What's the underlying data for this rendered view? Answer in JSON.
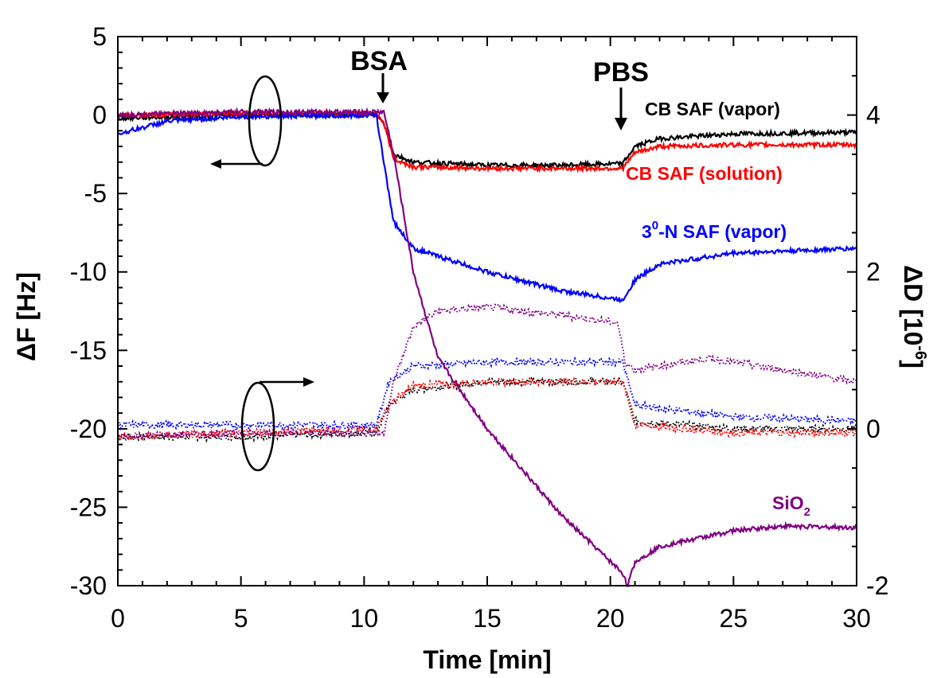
{
  "chart_data": {
    "type": "line",
    "title": "",
    "xlabel": "Time [min]",
    "ylabel_left": "ΔF [Hz]",
    "ylabel_right_prefix": "ΔD [10",
    "ylabel_right_exp": "-6",
    "ylabel_right_suffix": "]",
    "xlim": [
      0,
      30
    ],
    "ylim_left": [
      -30,
      5
    ],
    "ylim_right": [
      -2,
      5
    ],
    "x_ticks": [
      "0",
      "5",
      "10",
      "15",
      "20",
      "25",
      "30"
    ],
    "y_left_ticks": [
      "5",
      "0",
      "-5",
      "-10",
      "-15",
      "-20",
      "-25",
      "-30"
    ],
    "y_right_ticks": [
      "4",
      "2",
      "0",
      "-2"
    ],
    "annotations": {
      "bsa": {
        "text": "BSA",
        "x": 10.8
      },
      "pbs": {
        "text": "PBS",
        "x": 20.5
      }
    },
    "series": [
      {
        "name": "CB SAF (vapor)",
        "label_parts": [
          "CB SAF (vapor)"
        ],
        "color": "#000000",
        "frequency": {
          "x": [
            0,
            5,
            10.5,
            10.8,
            11.2,
            12,
            15,
            18,
            20.5,
            21,
            22,
            25,
            30
          ],
          "y": [
            -0.2,
            0,
            0,
            -0.5,
            -2.5,
            -3.0,
            -3.2,
            -3.2,
            -3.1,
            -2.0,
            -1.5,
            -1.2,
            -1.1
          ]
        },
        "dissipation": {
          "x": [
            0,
            5,
            10.5,
            11,
            12,
            15,
            20.5,
            21,
            25,
            30
          ],
          "y": [
            -0.1,
            -0.1,
            -0.05,
            0.3,
            0.5,
            0.6,
            0.6,
            0.1,
            0.0,
            0.0
          ]
        }
      },
      {
        "name": "CB SAF (solution)",
        "label_parts": [
          "CB SAF (solution)"
        ],
        "color": "#ff0000",
        "frequency": {
          "x": [
            0,
            5,
            10.5,
            10.8,
            11.2,
            12,
            15,
            18,
            20.5,
            21,
            22,
            25,
            30
          ],
          "y": [
            0,
            0.1,
            0.1,
            -0.5,
            -2.8,
            -3.3,
            -3.4,
            -3.4,
            -3.4,
            -2.4,
            -2.0,
            -1.9,
            -1.9
          ]
        },
        "dissipation": {
          "x": [
            0,
            5,
            10.5,
            11,
            12,
            15,
            20.5,
            21,
            25,
            30
          ],
          "y": [
            -0.1,
            -0.05,
            0.0,
            0.3,
            0.55,
            0.6,
            0.6,
            0.05,
            -0.05,
            -0.05
          ]
        }
      },
      {
        "name": "3⁰-N SAF (vapor)",
        "label_parts": [
          "3",
          "0",
          "-N SAF (vapor)"
        ],
        "color": "#0000ff",
        "frequency": {
          "x": [
            0,
            2,
            5,
            10.5,
            10.8,
            11.2,
            12,
            15,
            18,
            20.5,
            21,
            22,
            25,
            30
          ],
          "y": [
            -1.2,
            -0.4,
            -0.1,
            0,
            -3.0,
            -6.8,
            -8.5,
            -10.0,
            -11.2,
            -11.8,
            -10.5,
            -9.5,
            -8.8,
            -8.5
          ]
        },
        "dissipation": {
          "x": [
            0,
            5,
            10.5,
            11,
            12,
            15,
            20.5,
            21,
            25,
            30
          ],
          "y": [
            0.05,
            0.05,
            0.05,
            0.6,
            0.8,
            0.85,
            0.85,
            0.3,
            0.15,
            0.1
          ]
        }
      },
      {
        "name": "SiO2",
        "label_parts": [
          "SiO",
          "2"
        ],
        "color": "#800080",
        "frequency": {
          "x": [
            0,
            5,
            10.8,
            11.2,
            12,
            13,
            15,
            18,
            20.5,
            20.7,
            21,
            22,
            25,
            27,
            30
          ],
          "y": [
            0,
            0.2,
            0.2,
            -2.5,
            -10,
            -15.5,
            -20,
            -25.5,
            -29.2,
            -30,
            -28.5,
            -27.5,
            -26.5,
            -26.2,
            -26.3
          ]
        },
        "dissipation": {
          "x": [
            0,
            5,
            10.8,
            11.2,
            12,
            13,
            15,
            18,
            20.3,
            20.6,
            21,
            24,
            30
          ],
          "y": [
            -0.1,
            -0.05,
            -0.05,
            0.6,
            1.3,
            1.5,
            1.55,
            1.45,
            1.35,
            0.85,
            0.75,
            0.9,
            0.6
          ]
        }
      }
    ]
  }
}
